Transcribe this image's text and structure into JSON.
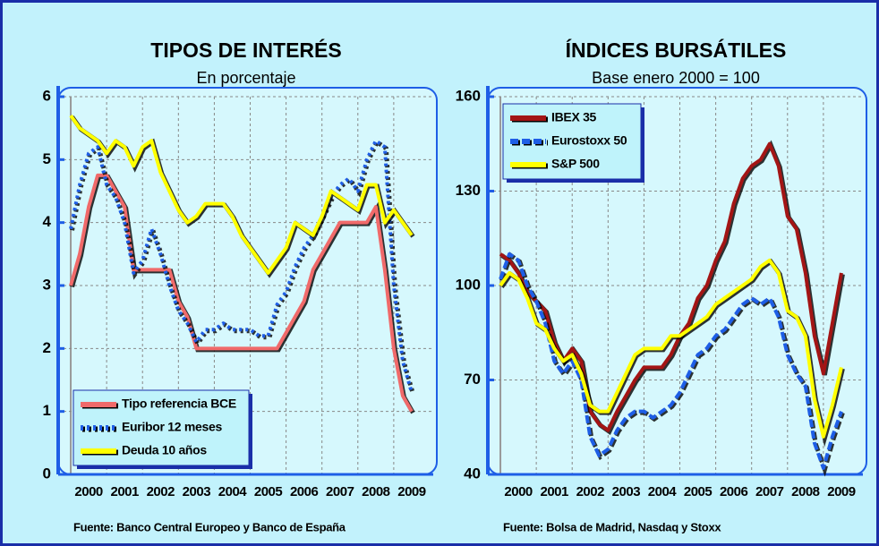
{
  "chart_data": [
    {
      "type": "line",
      "title": "TIPOS DE INTERÉS",
      "subtitle": "En porcentaje",
      "source": "Fuente: Banco Central Europeo y Banco de España",
      "x": [
        2000,
        2000.25,
        2000.5,
        2000.75,
        2001,
        2001.25,
        2001.5,
        2001.75,
        2002,
        2002.25,
        2002.5,
        2002.75,
        2003,
        2003.25,
        2003.5,
        2003.75,
        2004,
        2004.25,
        2004.5,
        2004.75,
        2005,
        2005.25,
        2005.5,
        2005.75,
        2006,
        2006.25,
        2006.5,
        2006.75,
        2007,
        2007.25,
        2007.5,
        2007.75,
        2008,
        2008.25,
        2008.5,
        2008.75,
        2009,
        2009.25,
        2009.5
      ],
      "series": [
        {
          "name": "Tipo referencia BCE",
          "color": "#f06a6a",
          "dash": "solid",
          "values": [
            3.0,
            3.5,
            4.25,
            4.75,
            4.75,
            4.5,
            4.25,
            3.25,
            3.25,
            3.25,
            3.25,
            3.25,
            2.75,
            2.5,
            2.0,
            2.0,
            2.0,
            2.0,
            2.0,
            2.0,
            2.0,
            2.0,
            2.0,
            2.0,
            2.25,
            2.5,
            2.75,
            3.25,
            3.5,
            3.75,
            4.0,
            4.0,
            4.0,
            4.0,
            4.25,
            3.25,
            2.0,
            1.25,
            1.0
          ]
        },
        {
          "name": "Euribor 12 meses",
          "color": "#1e5ee6",
          "dash": "dotted",
          "values": [
            3.9,
            4.6,
            5.1,
            5.2,
            4.6,
            4.4,
            4.0,
            3.2,
            3.4,
            3.9,
            3.5,
            3.0,
            2.6,
            2.4,
            2.1,
            2.3,
            2.3,
            2.4,
            2.3,
            2.3,
            2.3,
            2.2,
            2.2,
            2.7,
            2.9,
            3.3,
            3.6,
            3.8,
            4.1,
            4.4,
            4.6,
            4.7,
            4.5,
            5.0,
            5.3,
            5.2,
            3.0,
            1.8,
            1.3
          ]
        },
        {
          "name": "Deuda 10 años",
          "color": "#ffff00",
          "dash": "solid",
          "values": [
            5.7,
            5.5,
            5.4,
            5.3,
            5.1,
            5.3,
            5.2,
            4.9,
            5.2,
            5.3,
            4.8,
            4.5,
            4.2,
            4.0,
            4.1,
            4.3,
            4.3,
            4.3,
            4.1,
            3.8,
            3.6,
            3.4,
            3.2,
            3.4,
            3.6,
            4.0,
            3.9,
            3.8,
            4.1,
            4.5,
            4.4,
            4.3,
            4.2,
            4.6,
            4.6,
            4.0,
            4.2,
            4.0,
            3.8
          ]
        }
      ],
      "xlim": [
        1999.65,
        2010.2
      ],
      "xticks": [
        {
          "value": 2000,
          "label": "2000"
        },
        {
          "value": 2001,
          "label": "2001"
        },
        {
          "value": 2002,
          "label": "2002"
        },
        {
          "value": 2003,
          "label": "2003"
        },
        {
          "value": 2004,
          "label": "2004"
        },
        {
          "value": 2005,
          "label": "2005"
        },
        {
          "value": 2006,
          "label": "2006"
        },
        {
          "value": 2007,
          "label": "2007"
        },
        {
          "value": 2008,
          "label": "2008"
        },
        {
          "value": 2009,
          "label": "2009"
        }
      ],
      "ylim": [
        0,
        6
      ],
      "yticks": [
        0,
        1,
        2,
        3,
        4,
        5,
        6
      ],
      "grid": true,
      "legend": "lower left"
    },
    {
      "type": "line",
      "title": "ÍNDICES BURSÁTILES",
      "subtitle": "Base enero 2000 = 100",
      "source": "Fuente: Bolsa de Madrid, Nasdaq y Stoxx",
      "x": [
        2000,
        2000.25,
        2000.5,
        2000.75,
        2001,
        2001.25,
        2001.5,
        2001.75,
        2002,
        2002.25,
        2002.5,
        2002.75,
        2003,
        2003.25,
        2003.5,
        2003.75,
        2004,
        2004.25,
        2004.5,
        2004.75,
        2005,
        2005.25,
        2005.5,
        2005.75,
        2006,
        2006.25,
        2006.5,
        2006.75,
        2007,
        2007.25,
        2007.5,
        2007.75,
        2008,
        2008.25,
        2008.5,
        2008.75,
        2009,
        2009.25,
        2009.5
      ],
      "series": [
        {
          "name": "IBEX 35",
          "color": "#a31515",
          "dash": "solid",
          "values": [
            110,
            108,
            104,
            98,
            95,
            92,
            82,
            76,
            80,
            76,
            60,
            56,
            54,
            60,
            65,
            70,
            74,
            74,
            74,
            78,
            84,
            88,
            96,
            100,
            108,
            114,
            126,
            134,
            138,
            140,
            145,
            138,
            122,
            118,
            104,
            84,
            72,
            88,
            104
          ]
        },
        {
          "name": "Eurostoxx 50",
          "color": "#1e5ee6",
          "dash": "dashed",
          "values": [
            102,
            110,
            108,
            100,
            95,
            88,
            76,
            72,
            76,
            70,
            52,
            46,
            48,
            54,
            58,
            60,
            60,
            58,
            60,
            62,
            66,
            72,
            78,
            80,
            84,
            86,
            90,
            94,
            96,
            94,
            96,
            90,
            78,
            72,
            68,
            50,
            42,
            52,
            60
          ]
        },
        {
          "name": "S&P 500",
          "color": "#ffff00",
          "dash": "solid",
          "values": [
            100,
            104,
            102,
            96,
            88,
            86,
            80,
            76,
            78,
            72,
            62,
            60,
            60,
            66,
            72,
            78,
            80,
            80,
            80,
            84,
            84,
            86,
            88,
            90,
            94,
            96,
            98,
            100,
            102,
            106,
            108,
            104,
            92,
            90,
            84,
            64,
            52,
            62,
            74
          ]
        }
      ],
      "xlim": [
        1999.65,
        2010.2
      ],
      "xticks": [
        {
          "value": 2000,
          "label": "2000"
        },
        {
          "value": 2001,
          "label": "2001"
        },
        {
          "value": 2002,
          "label": "2002"
        },
        {
          "value": 2003,
          "label": "2003"
        },
        {
          "value": 2004,
          "label": "2004"
        },
        {
          "value": 2005,
          "label": "2005"
        },
        {
          "value": 2006,
          "label": "2006"
        },
        {
          "value": 2007,
          "label": "2007"
        },
        {
          "value": 2008,
          "label": "2008"
        },
        {
          "value": 2009,
          "label": "2009"
        }
      ],
      "ylim": [
        40,
        160
      ],
      "yticks": [
        40,
        70,
        100,
        130,
        160
      ],
      "grid": true,
      "legend": "upper left"
    }
  ]
}
